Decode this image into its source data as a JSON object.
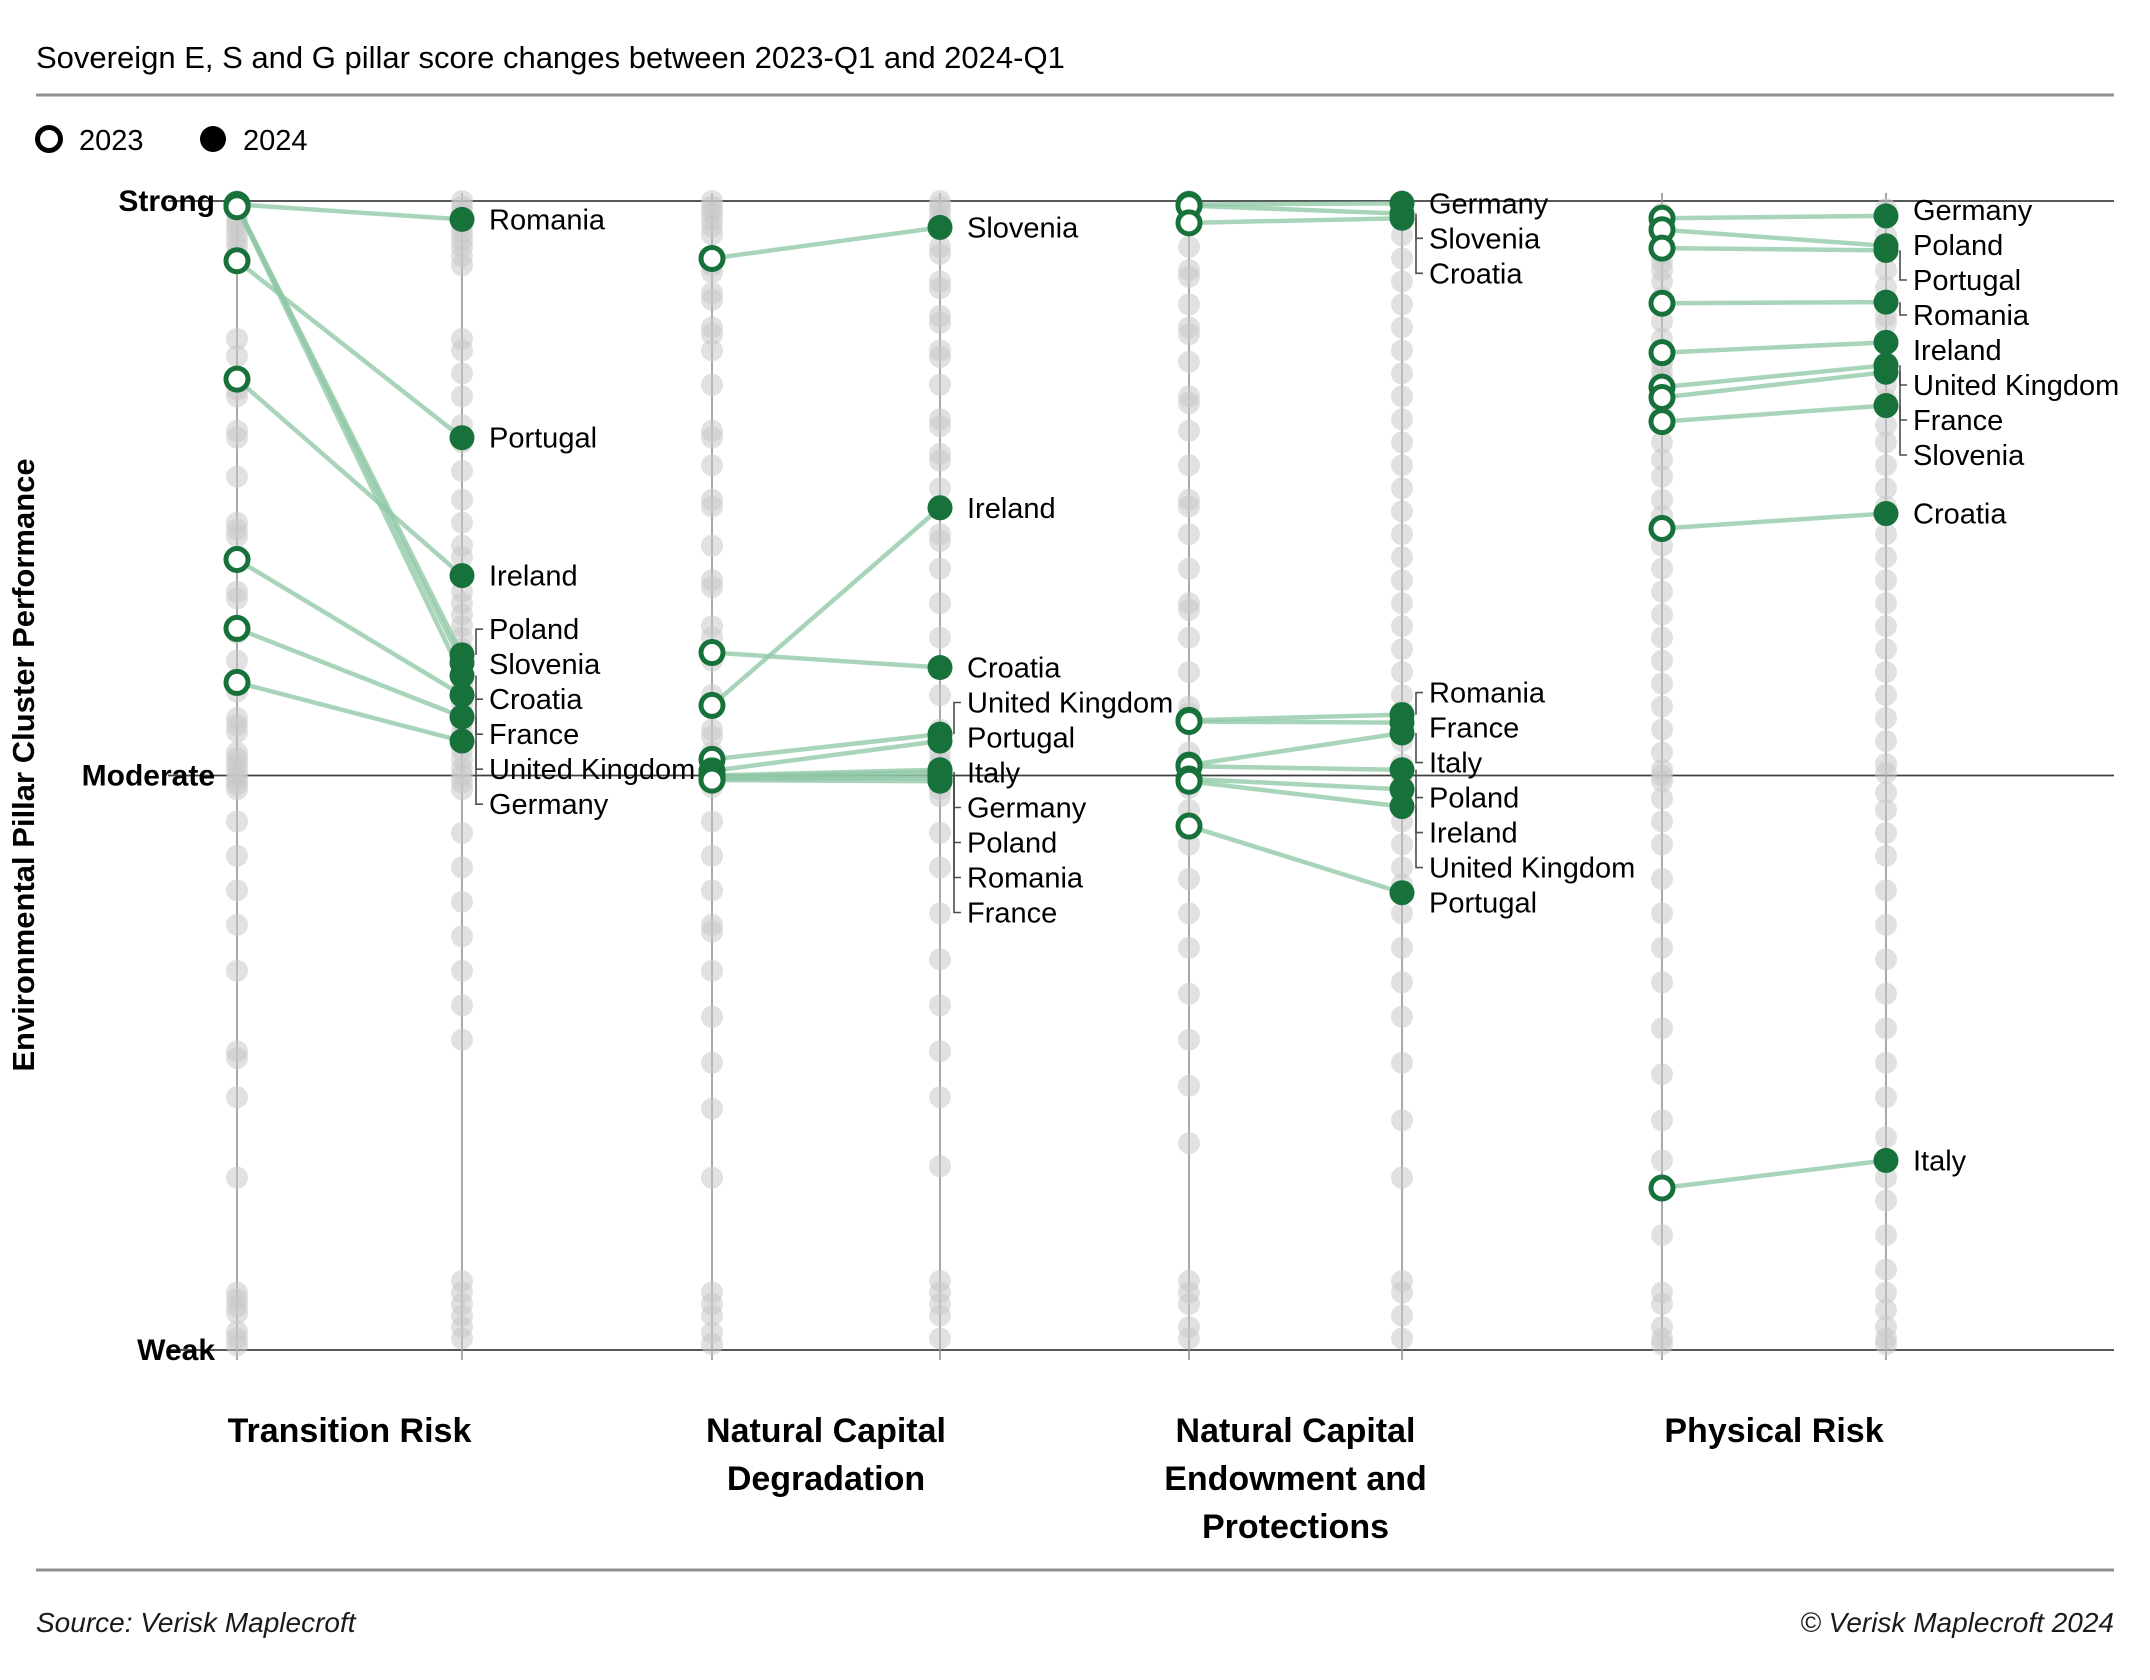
{
  "title": "Sovereign E, S and G pillar score changes between 2023-Q1 and 2024-Q1",
  "legend": {
    "items": [
      {
        "label": "2023",
        "marker": "open-circle"
      },
      {
        "label": "2024",
        "marker": "filled-circle"
      }
    ]
  },
  "y_axis": {
    "title": "Environmental Pillar Cluster Performance",
    "tick_labels": [
      "Strong",
      "Moderate",
      "Weak"
    ]
  },
  "footer": {
    "source": "Source: Verisk Maplecroft",
    "copyright": "© Verisk Maplecroft 2024"
  },
  "colors": {
    "highlight_green": "#17713b",
    "line_green": "#8fc8a6",
    "gray_dot": "#c9c9c9",
    "grid_line": "#3f3f3f",
    "axis_line": "#8c8c8c",
    "connector": "#4d4d4d",
    "legend_marker": "#000000",
    "rule": "#919191"
  },
  "chart_data": {
    "type": "slope-dumbbell",
    "title": "Sovereign E, S and G pillar score changes between 2023-Q1 and 2024-Q1",
    "series_years": [
      "2023",
      "2024"
    ],
    "ylabel": "Environmental Pillar Cluster Performance",
    "ylim": [
      0,
      100
    ],
    "value_scale": {
      "100": "Strong",
      "50": "Moderate",
      "0": "Weak"
    },
    "x_categories": [
      "Transition Risk",
      "Natural Capital Degradation",
      "Natural Capital Endowment and Protections",
      "Physical Risk"
    ],
    "panels": [
      {
        "title": "Transition Risk",
        "title_lines": [
          "Transition Risk"
        ],
        "highlights": [
          {
            "country": "Romania",
            "v2023": 99.7,
            "v2024": 98.4
          },
          {
            "country": "Portugal",
            "v2023": 94.8,
            "v2024": 79.4
          },
          {
            "country": "Ireland",
            "v2023": 84.5,
            "v2024": 67.4
          },
          {
            "country": "Poland",
            "v2023": 99.6,
            "v2024": 60.5
          },
          {
            "country": "Slovenia",
            "v2023": 99.6,
            "v2024": 59.8
          },
          {
            "country": "Croatia",
            "v2023": 99.5,
            "v2024": 58.7
          },
          {
            "country": "France",
            "v2023": 68.8,
            "v2024": 57.0
          },
          {
            "country": "United Kingdom",
            "v2023": 62.8,
            "v2024": 55.1
          },
          {
            "country": "Germany",
            "v2023": 58.1,
            "v2024": 53.0
          }
        ],
        "background_2023": [
          100,
          99.6,
          99.2,
          98.8,
          98.3,
          97.8,
          97.2,
          96.6,
          96,
          95.3,
          94.6,
          88,
          86.5,
          84.2,
          83.6,
          83,
          80,
          79.4,
          76,
          72,
          71.4,
          70.8,
          69,
          66,
          65.4,
          63,
          62.4,
          60,
          57.9,
          57.3,
          55,
          54.4,
          53.8,
          52,
          51.5,
          51,
          50.5,
          50,
          49.6,
          49.2,
          48.8,
          46,
          43,
          40,
          37,
          33,
          26,
          25.4,
          22,
          15,
          5,
          4.4,
          3.8,
          3.2,
          1.6,
          1,
          0.4
        ],
        "background_2024": [
          100,
          99.5,
          99,
          98.4,
          97.8,
          97.2,
          96.6,
          96,
          95.2,
          94.4,
          88,
          87,
          85,
          83,
          80.5,
          79,
          76.5,
          74,
          72,
          70,
          69,
          67.5,
          66,
          65,
          64,
          63,
          62,
          61,
          60.2,
          59.4,
          58.6,
          57.8,
          57,
          56.2,
          55.4,
          54.6,
          53.8,
          53,
          52.2,
          51.4,
          50.6,
          50,
          49.4,
          48.8,
          45,
          42,
          39,
          36,
          33,
          30,
          27,
          6,
          5,
          4,
          3,
          2,
          1
        ]
      },
      {
        "title": "Natural Capital Degradation",
        "title_lines": [
          "Natural Capital",
          "Degradation"
        ],
        "highlights": [
          {
            "country": "Slovenia",
            "v2023": 95.0,
            "v2024": 97.7
          },
          {
            "country": "Ireland",
            "v2023": 56.1,
            "v2024": 73.3
          },
          {
            "country": "Croatia",
            "v2023": 60.7,
            "v2024": 59.4
          },
          {
            "country": "United Kingdom",
            "v2023": 51.4,
            "v2024": 53.6
          },
          {
            "country": "Portugal",
            "v2023": 50.4,
            "v2024": 53.0
          },
          {
            "country": "Italy",
            "v2023": 50.0,
            "v2024": 50.5
          },
          {
            "country": "Germany",
            "v2023": 49.9,
            "v2024": 50.3
          },
          {
            "country": "Poland",
            "v2023": 49.8,
            "v2024": 50.0
          },
          {
            "country": "Romania",
            "v2023": 49.7,
            "v2024": 49.8
          },
          {
            "country": "France",
            "v2023": 49.6,
            "v2024": 49.5
          }
        ],
        "background_2023": [
          100,
          99.5,
          99,
          98.4,
          97.8,
          97.1,
          95,
          94.4,
          93.8,
          92,
          91.4,
          89,
          88.4,
          87,
          84,
          80,
          79.4,
          77,
          74,
          73.4,
          70,
          67,
          66.4,
          63,
          62,
          60,
          57,
          54,
          53.4,
          52,
          51.4,
          50.9,
          50.4,
          50,
          49.5,
          49,
          46,
          43,
          40,
          37,
          36.4,
          33,
          29,
          25,
          21,
          15,
          5,
          4,
          3,
          1.5,
          0.5
        ],
        "background_2024": [
          100,
          99.5,
          99,
          98.4,
          97.8,
          96,
          95.4,
          93,
          92.4,
          90,
          89.4,
          87,
          86.4,
          84,
          81,
          80.4,
          78,
          77.4,
          75,
          71,
          70.4,
          68,
          65,
          62,
          57,
          54,
          52,
          51.2,
          50.6,
          50,
          49.4,
          48.8,
          48.2,
          45,
          42,
          38,
          34,
          30,
          26,
          22,
          16,
          6,
          5,
          4,
          3,
          1
        ]
      },
      {
        "title": "Natural Capital Endowment and Protections",
        "title_lines": [
          "Natural Capital",
          "Endowment and",
          "Protections"
        ],
        "highlights": [
          {
            "country": "Germany",
            "v2023": 99.7,
            "v2024": 99.8
          },
          {
            "country": "Slovenia",
            "v2023": 99.6,
            "v2024": 98.9
          },
          {
            "country": "Croatia",
            "v2023": 98.1,
            "v2024": 98.5
          },
          {
            "country": "Romania",
            "v2023": 54.8,
            "v2024": 55.3
          },
          {
            "country": "France",
            "v2023": 54.7,
            "v2024": 54.6
          },
          {
            "country": "Italy",
            "v2023": 50.9,
            "v2024": 53.7
          },
          {
            "country": "Poland",
            "v2023": 50.8,
            "v2024": 50.5
          },
          {
            "country": "Ireland",
            "v2023": 49.7,
            "v2024": 48.8
          },
          {
            "country": "United Kingdom",
            "v2023": 49.5,
            "v2024": 47.3
          },
          {
            "country": "Portugal",
            "v2023": 45.6,
            "v2024": 39.8
          }
        ],
        "background_2023": [
          100,
          99.5,
          99,
          98.5,
          98,
          96,
          94,
          93.4,
          91,
          89,
          88.4,
          86,
          83,
          82.4,
          80,
          77,
          74,
          73.4,
          71,
          68,
          65,
          64.4,
          62,
          59,
          56,
          55.4,
          54.8,
          52,
          51,
          50.4,
          49.9,
          49.4,
          48.9,
          47,
          44,
          41,
          38,
          35,
          31,
          27,
          23,
          18,
          6,
          5,
          4,
          2,
          1
        ],
        "background_2024": [
          100,
          99.6,
          99.2,
          98.8,
          97,
          95,
          93,
          91,
          89,
          87,
          85,
          83,
          81,
          79,
          77,
          75,
          73,
          71,
          69,
          67,
          65,
          63,
          61,
          59,
          57,
          55.6,
          55,
          54.4,
          53,
          51,
          50.4,
          49.9,
          48,
          46,
          44,
          42,
          40.5,
          38,
          35,
          32,
          29,
          25,
          20,
          15,
          6,
          5,
          3,
          1
        ]
      },
      {
        "title": "Physical Risk",
        "title_lines": [
          "Physical Risk"
        ],
        "highlights": [
          {
            "country": "Germany",
            "v2023": 98.5,
            "v2024": 98.7
          },
          {
            "country": "Poland",
            "v2023": 97.5,
            "v2024": 96.1
          },
          {
            "country": "Portugal",
            "v2023": 95.9,
            "v2024": 95.7
          },
          {
            "country": "Romania",
            "v2023": 91.1,
            "v2024": 91.2
          },
          {
            "country": "Ireland",
            "v2023": 86.8,
            "v2024": 87.7
          },
          {
            "country": "United Kingdom",
            "v2023": 83.8,
            "v2024": 85.7
          },
          {
            "country": "France",
            "v2023": 82.9,
            "v2024": 85.1
          },
          {
            "country": "Slovenia",
            "v2023": 80.8,
            "v2024": 82.2
          },
          {
            "country": "Croatia",
            "v2023": 71.5,
            "v2024": 72.8
          },
          {
            "country": "Italy",
            "v2023": 14.1,
            "v2024": 16.5
          }
        ],
        "background_2023": [
          98.9,
          97,
          95.4,
          94.7,
          94,
          93,
          91.6,
          89.5,
          88,
          85.9,
          85.2,
          84.5,
          81.5,
          79,
          77.5,
          76,
          74,
          72.6,
          70,
          68,
          66,
          64,
          62,
          60,
          58,
          56,
          54,
          52,
          50.5,
          50,
          49.5,
          48,
          46,
          44,
          41,
          38,
          35,
          32,
          28,
          24,
          20,
          16.5,
          14,
          10,
          5,
          4,
          2,
          1,
          0.5
        ],
        "background_2024": [
          99.3,
          97,
          94,
          92.5,
          90,
          89.4,
          86,
          84,
          82.7,
          80.5,
          79,
          77,
          75,
          73.4,
          71,
          69,
          67,
          65,
          63,
          61,
          59,
          57,
          55,
          53,
          51,
          50.2,
          48.5,
          47,
          45,
          43,
          40,
          37,
          34,
          31,
          28,
          25,
          22,
          18.5,
          15,
          13,
          10,
          7,
          5,
          3.5,
          2,
          1,
          0.5
        ]
      }
    ]
  }
}
